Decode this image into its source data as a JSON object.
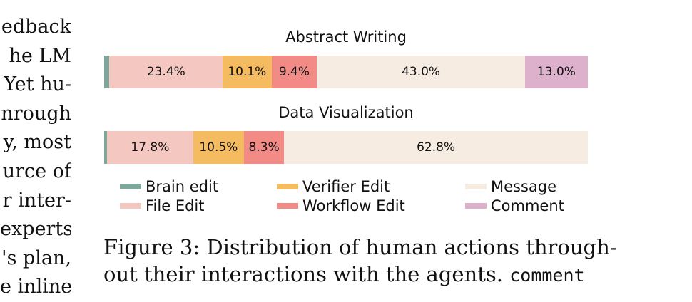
{
  "left_text": [
    "edback",
    "he LM",
    "Yet hu-",
    "nrough",
    "y, most",
    "urce of",
    "r inter-",
    "experts",
    "'s plan,",
    "e inline"
  ],
  "legend": [
    {
      "label": "Brain edit",
      "color": "#7ea69a"
    },
    {
      "label": "File Edit",
      "color": "#f4c8c0"
    },
    {
      "label": "Verifier Edit",
      "color": "#f4bb60"
    },
    {
      "label": "Workflow Edit",
      "color": "#f28b85"
    },
    {
      "label": "Message",
      "color": "#f7ece2"
    },
    {
      "label": "Comment",
      "color": "#ddb1cc"
    }
  ],
  "chart_data": [
    {
      "type": "bar",
      "title": "Abstract Writing",
      "series": [
        {
          "name": "Brain edit",
          "value": 1.1,
          "label": ""
        },
        {
          "name": "File Edit",
          "value": 23.4,
          "label": "23.4%"
        },
        {
          "name": "Verifier Edit",
          "value": 10.1,
          "label": "10.1%"
        },
        {
          "name": "Workflow Edit",
          "value": 9.4,
          "label": "9.4%"
        },
        {
          "name": "Message",
          "value": 43.0,
          "label": "43.0%"
        },
        {
          "name": "Comment",
          "value": 13.0,
          "label": "13.0%"
        }
      ]
    },
    {
      "type": "bar",
      "title": "Data Visualization",
      "series": [
        {
          "name": "Brain edit",
          "value": 0.6,
          "label": ""
        },
        {
          "name": "File Edit",
          "value": 17.8,
          "label": "17.8%"
        },
        {
          "name": "Verifier Edit",
          "value": 10.5,
          "label": "10.5%"
        },
        {
          "name": "Workflow Edit",
          "value": 8.3,
          "label": "8.3%"
        },
        {
          "name": "Message",
          "value": 62.8,
          "label": "62.8%"
        }
      ]
    }
  ],
  "caption": {
    "line1": "Figure 3: Distribution of human actions through-",
    "line2_text": "out their interactions with the agents. ",
    "line2_code": "comment"
  }
}
